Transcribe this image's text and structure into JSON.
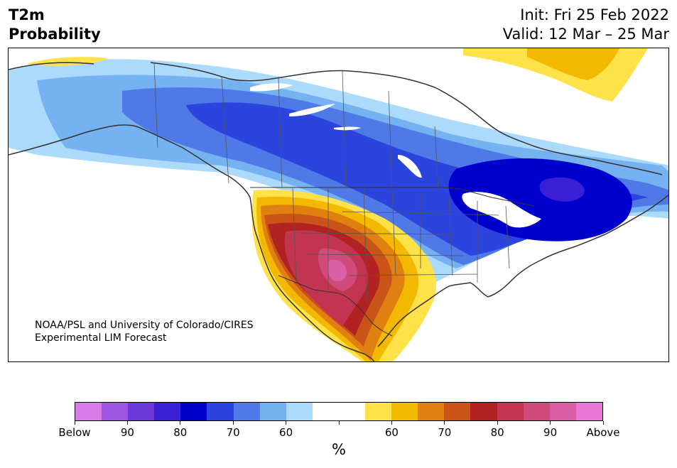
{
  "header": {
    "title_line1": "T2m",
    "title_line2": "Probability",
    "init": "Init: Fri 25 Feb 2022",
    "valid": "Valid: 12 Mar – 25 Mar"
  },
  "credit": {
    "line1": "NOAA/PSL and University of Colorado/CIRES",
    "line2": "Experimental LIM Forecast"
  },
  "colorbar": {
    "unit": "%",
    "colors": [
      "#d77bea",
      "#9b55e0",
      "#6a38d8",
      "#3a1fd6",
      "#0000cd",
      "#2a44dd",
      "#4f79e6",
      "#76b1f2",
      "#acdafc",
      "#ffffff",
      "#ffffff",
      "#ffe24a",
      "#f3b800",
      "#e08010",
      "#c95318",
      "#b22222",
      "#c23450",
      "#d04a7a",
      "#dc60a8",
      "#e878d8"
    ],
    "tick_labels": [
      "Below",
      "90",
      "80",
      "70",
      "60",
      "",
      "60",
      "70",
      "80",
      "90",
      "Above"
    ]
  },
  "map": {
    "colors": {
      "blue_deep": "#0000cd",
      "blue_strong": "#2a44dd",
      "blue_mid": "#4f79e6",
      "blue_light": "#76b1f2",
      "blue_pale": "#acdafc",
      "purple": "#3a1fd6",
      "yellow": "#ffe24a",
      "gold": "#f3b800",
      "orange": "#e08010",
      "red_orange": "#c95318",
      "red": "#b22222",
      "crimson": "#c23450",
      "pink": "#d04a7a",
      "magenta": "#dc60a8"
    }
  }
}
